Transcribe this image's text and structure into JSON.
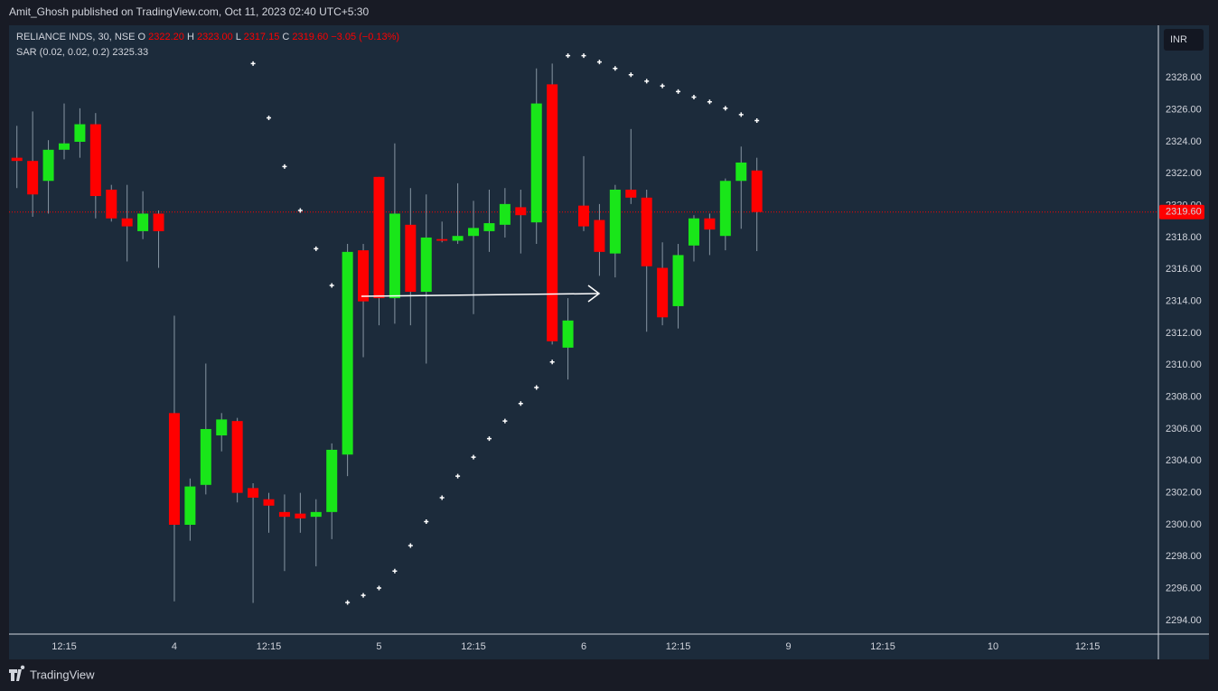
{
  "page": {
    "published": "Amit_Ghosh published on TradingView.com, Oct 11, 2023 02:40 UTC+5:30",
    "brand": "TradingView",
    "currency": "INR"
  },
  "legend": {
    "symbol": "RELIANCE INDS, 30, NSE",
    "fields": [
      {
        "key": "O",
        "value": "2322.20"
      },
      {
        "key": "H",
        "value": "2323.00"
      },
      {
        "key": "L",
        "value": "2317.15"
      },
      {
        "key": "C",
        "value": "2319.60"
      }
    ],
    "change": "−3.05 (−0.13%)",
    "indicator": "SAR (0.02, 0.02, 0.2)",
    "indicator_value": "2325.33"
  },
  "chart_data": {
    "type": "candlestick",
    "up_color": "#19e619",
    "down_color": "#ff0000",
    "categories": [
      null,
      null,
      null,
      "12:15",
      null,
      null,
      null,
      null,
      null,
      null,
      "4",
      null,
      null,
      null,
      null,
      null,
      "12:15",
      null,
      null,
      null,
      null,
      null,
      null,
      "5",
      null,
      null,
      null,
      null,
      null,
      "12:15",
      null,
      null,
      null,
      null,
      null,
      null,
      "6",
      null,
      null,
      null,
      null,
      null,
      "12:15",
      null,
      null,
      null,
      null,
      null,
      null,
      "9",
      null,
      null,
      null,
      null,
      null,
      "12:15",
      null,
      null,
      null,
      null,
      null,
      null,
      "10",
      null,
      null,
      null,
      null,
      null,
      "12:15",
      null,
      null,
      null,
      null
    ],
    "open": [
      2323.0,
      2322.8,
      2321.55,
      2323.5,
      2324.0,
      2325.1,
      2321.0,
      2319.2,
      2318.4,
      2319.5,
      2307.0,
      2300.0,
      2302.5,
      2305.6,
      2306.5,
      2302.3,
      2301.6,
      2300.8,
      2300.7,
      2300.5,
      2300.8,
      2304.4,
      2317.2,
      2321.8,
      2314.2,
      2318.8,
      2314.6,
      2317.9,
      2317.8,
      2318.1,
      2318.4,
      2318.8,
      2319.9,
      2318.95,
      2327.6,
      2311.1,
      2320.0,
      2319.1,
      2317.0,
      2321.0,
      2320.5,
      2316.1,
      2313.7,
      2317.5,
      2319.2,
      2318.1,
      2321.55,
      2322.2,
      null,
      null,
      null,
      null,
      null,
      null,
      null,
      null,
      null,
      null,
      null,
      null,
      null,
      null,
      null,
      null,
      null,
      null,
      null,
      null,
      null,
      null,
      null,
      null,
      null
    ],
    "high": [
      2325.0,
      2325.9,
      2324.1,
      2326.4,
      2326.1,
      2325.8,
      2321.3,
      2321.3,
      2320.9,
      2319.7,
      2313.1,
      2302.9,
      2310.1,
      2307.0,
      2306.7,
      2302.6,
      2302.0,
      2301.9,
      2302.0,
      2301.6,
      2305.1,
      2317.6,
      2317.6,
      2321.8,
      2323.9,
      2321.1,
      2320.7,
      2319.0,
      2321.4,
      2320.3,
      2321.0,
      2321.1,
      2321.0,
      2328.6,
      2328.9,
      2314.2,
      2323.1,
      2320.1,
      2321.3,
      2324.8,
      2321.0,
      2317.7,
      2317.6,
      2319.4,
      2319.5,
      2321.7,
      2323.7,
      2323.0,
      null,
      null,
      null,
      null,
      null,
      null,
      null,
      null,
      null,
      null,
      null,
      null,
      null,
      null,
      null,
      null,
      null,
      null,
      null,
      null,
      null,
      null,
      null,
      null,
      null
    ],
    "low": [
      2321.1,
      2319.3,
      2319.5,
      2322.9,
      2323.0,
      2319.2,
      2319.0,
      2316.5,
      2317.9,
      2316.1,
      2295.2,
      2299.0,
      2301.9,
      2304.6,
      2301.4,
      2295.1,
      2299.5,
      2297.1,
      2299.5,
      2297.4,
      2299.1,
      2303.05,
      2310.5,
      2312.5,
      2312.6,
      2312.5,
      2310.1,
      2317.7,
      2317.6,
      2313.2,
      2317.1,
      2318.0,
      2317.0,
      2317.6,
      2311.3,
      2309.1,
      2318.4,
      2315.6,
      2315.5,
      2320.1,
      2312.1,
      2312.5,
      2312.3,
      2316.5,
      2316.9,
      2317.2,
      2318.55,
      2317.15,
      null,
      null,
      null,
      null,
      null,
      null,
      null,
      null,
      null,
      null,
      null,
      null,
      null,
      null,
      null,
      null,
      null,
      null,
      null,
      null,
      null,
      null,
      null,
      null,
      null
    ],
    "close": [
      2322.8,
      2320.7,
      2323.5,
      2323.9,
      2325.1,
      2320.6,
      2319.2,
      2318.7,
      2319.5,
      2318.4,
      2300.0,
      2302.4,
      2306.0,
      2306.6,
      2302.0,
      2301.7,
      2301.2,
      2300.5,
      2300.4,
      2300.8,
      2304.7,
      2317.1,
      2314.0,
      2314.2,
      2319.5,
      2314.6,
      2318.0,
      2317.8,
      2318.1,
      2318.6,
      2318.9,
      2320.1,
      2319.4,
      2326.4,
      2311.5,
      2312.8,
      2318.7,
      2317.1,
      2321.0,
      2320.5,
      2316.2,
      2313.0,
      2316.9,
      2319.2,
      2318.5,
      2321.55,
      2322.7,
      2319.6,
      null,
      null,
      null,
      null,
      null,
      null,
      null,
      null,
      null,
      null,
      null,
      null,
      null,
      null,
      null,
      null,
      null,
      null,
      null,
      null,
      null,
      null,
      null,
      null,
      null
    ],
    "sar": [
      null,
      null,
      null,
      null,
      null,
      null,
      null,
      null,
      null,
      null,
      null,
      null,
      null,
      null,
      null,
      2328.9,
      2325.5,
      2322.45,
      2319.7,
      2317.3,
      2315.0,
      2295.13,
      2295.58,
      2296.04,
      2297.1,
      2298.7,
      2300.2,
      2301.7,
      2303.05,
      2304.24,
      2305.4,
      2306.5,
      2307.6,
      2308.6,
      2310.2,
      2329.4,
      2329.4,
      2329.0,
      2328.6,
      2328.2,
      2327.8,
      2327.5,
      2327.15,
      2326.8,
      2326.5,
      2326.1,
      2325.7,
      2325.33,
      null,
      null,
      null,
      null,
      null,
      null,
      null,
      null,
      null,
      null,
      null,
      null,
      null,
      null,
      null,
      null,
      null,
      null,
      null,
      null,
      null,
      null,
      null,
      null,
      null
    ],
    "sar_color": "#ffffff",
    "last_price": {
      "value": 2319.6,
      "label": "2319.60"
    },
    "ylim": [
      2293.15,
      2331.3
    ],
    "yticks": [
      {
        "value": 2294,
        "label": "2294.00"
      },
      {
        "value": 2296,
        "label": "2296.00"
      },
      {
        "value": 2298,
        "label": "2298.00"
      },
      {
        "value": 2300,
        "label": "2300.00"
      },
      {
        "value": 2302,
        "label": "2302.00"
      },
      {
        "value": 2304,
        "label": "2304.00"
      },
      {
        "value": 2306,
        "label": "2306.00"
      },
      {
        "value": 2308,
        "label": "2308.00"
      },
      {
        "value": 2310,
        "label": "2310.00"
      },
      {
        "value": 2312,
        "label": "2312.00"
      },
      {
        "value": 2314,
        "label": "2314.00"
      },
      {
        "value": 2316,
        "label": "2316.00"
      },
      {
        "value": 2318,
        "label": "2318.00"
      },
      {
        "value": 2320,
        "label": "2320.00"
      },
      {
        "value": 2322,
        "label": "2322.00"
      },
      {
        "value": 2324,
        "label": "2324.00"
      },
      {
        "value": 2326,
        "label": "2326.00"
      },
      {
        "value": 2328,
        "label": "2328.00"
      }
    ],
    "grid": false
  }
}
